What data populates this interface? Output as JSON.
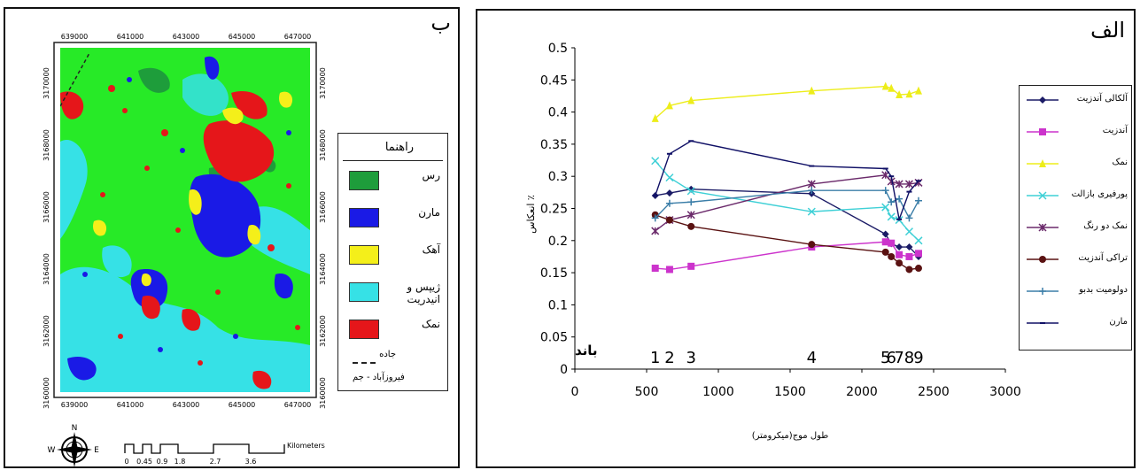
{
  "map_panel": {
    "letter": "ب",
    "top_ticks": [
      "639000",
      "641000",
      "643000",
      "645000",
      "647000"
    ],
    "bottom_ticks": [
      "639000",
      "641000",
      "643000",
      "645000",
      "647000"
    ],
    "left_ticks": [
      "3170000",
      "3168000",
      "3166000",
      "3164000",
      "3162000",
      "3160000"
    ],
    "right_ticks": [
      "3170000",
      "3168000",
      "3166000",
      "3164000",
      "3162000",
      "3160000"
    ],
    "legend": {
      "title": "راهنما",
      "items": [
        {
          "label": "رس",
          "color": "#1e9d3b"
        },
        {
          "label": "مارن",
          "color": "#1a1ae6"
        },
        {
          "label": "آهک",
          "color": "#f4ef1a"
        },
        {
          "label": "ژیپس و انیدریت",
          "color": "#36e1e6"
        },
        {
          "label": "نمک",
          "color": "#e5161a"
        }
      ],
      "road_label": "جاده",
      "area_label": "فیروزآباد - جم"
    },
    "compass": {
      "n": "N",
      "e": "E",
      "w": "W",
      "s": "S"
    },
    "scale": {
      "unit": "Kilometers",
      "ticks": [
        "0",
        "0.45",
        "0.9",
        "1.8",
        "2.7",
        "3.6"
      ]
    },
    "colors": {
      "background": "#27ea27",
      "clay": "#1e9d3b",
      "marl": "#1a1ae6",
      "limestone": "#f4ef1a",
      "gypsum": "#36e1e6",
      "salt": "#e5161a"
    }
  },
  "chart_panel": {
    "letter": "الف",
    "band_label": "باند",
    "band_numbers": [
      {
        "label": "1",
        "x": 560
      },
      {
        "label": "2",
        "x": 660
      },
      {
        "label": "3",
        "x": 810
      },
      {
        "label": "4",
        "x": 1650
      },
      {
        "label": "5",
        "x": 2165
      },
      {
        "label": "6",
        "x": 2205
      },
      {
        "label": "7",
        "x": 2260
      },
      {
        "label": "8",
        "x": 2330
      },
      {
        "label": "9",
        "x": 2395
      }
    ]
  },
  "chart_data": {
    "type": "line",
    "xlabel": "طول موج(میکرومتر)",
    "ylabel": "انعکاس ٪",
    "xlim": [
      0,
      3000
    ],
    "ylim": [
      0,
      0.5
    ],
    "xticks": [
      0,
      500,
      1000,
      1500,
      2000,
      2500,
      3000
    ],
    "yticks": [
      0,
      0.05,
      0.1,
      0.15,
      0.2,
      0.25,
      0.3,
      0.35,
      0.4,
      0.45,
      0.5
    ],
    "ytick_labels": [
      "0",
      "0.05",
      "0.1",
      "0.15",
      "0.2",
      "0.25",
      "0.3",
      "0.35",
      "0.4",
      "0.45",
      "0.5"
    ],
    "x": [
      560,
      660,
      810,
      1650,
      2165,
      2205,
      2260,
      2330,
      2395
    ],
    "legend_position": "right",
    "series": [
      {
        "name": "آلکالی آندزیت",
        "color": "#1b1b66",
        "marker": "diamond",
        "values": [
          0.27,
          0.274,
          0.28,
          0.273,
          0.21,
          0.195,
          0.19,
          0.19,
          0.175
        ]
      },
      {
        "name": "آندزیت",
        "color": "#cc33cc",
        "marker": "square",
        "values": [
          0.157,
          0.155,
          0.16,
          0.19,
          0.198,
          0.196,
          0.178,
          0.175,
          0.18
        ]
      },
      {
        "name": "نمک",
        "color": "#eded1a",
        "marker": "triangle",
        "values": [
          0.39,
          0.41,
          0.418,
          0.433,
          0.44,
          0.437,
          0.427,
          0.428,
          0.433
        ]
      },
      {
        "name": "پورفیری بازالت",
        "color": "#3fd0d6",
        "marker": "x",
        "values": [
          0.324,
          0.298,
          0.277,
          0.245,
          0.252,
          0.237,
          0.232,
          0.214,
          0.2
        ]
      },
      {
        "name": "نمک دو رنگ",
        "color": "#6b2a6b",
        "marker": "star",
        "values": [
          0.215,
          0.232,
          0.24,
          0.288,
          0.302,
          0.292,
          0.288,
          0.288,
          0.29
        ]
      },
      {
        "name": "تراکی آندزیت",
        "color": "#5a1212",
        "marker": "circle",
        "values": [
          0.24,
          0.232,
          0.222,
          0.194,
          0.182,
          0.175,
          0.165,
          0.155,
          0.157
        ]
      },
      {
        "name": "دولومیت بدبو",
        "color": "#3b7ea8",
        "marker": "plus",
        "values": [
          0.235,
          0.258,
          0.26,
          0.278,
          0.278,
          0.26,
          0.265,
          0.235,
          0.262
        ]
      },
      {
        "name": "مارن",
        "color": "#101066",
        "marker": "dash",
        "values": [
          0.27,
          0.335,
          0.355,
          0.316,
          0.312,
          0.3,
          0.233,
          0.276,
          0.293
        ]
      }
    ]
  }
}
